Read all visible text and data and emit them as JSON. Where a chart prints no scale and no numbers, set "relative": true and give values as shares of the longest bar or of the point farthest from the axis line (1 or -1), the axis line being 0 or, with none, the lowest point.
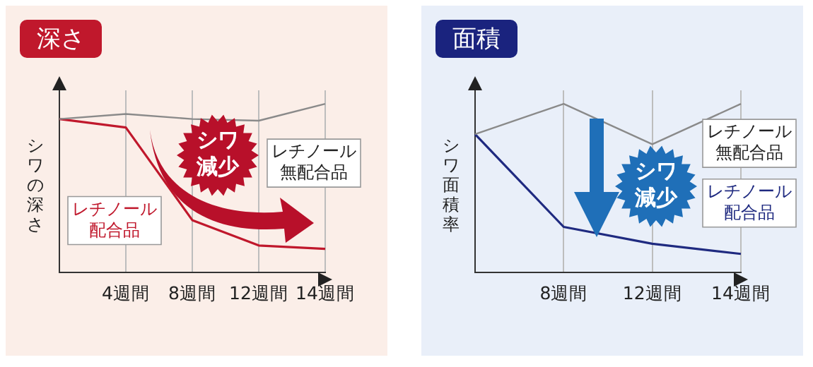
{
  "chart_data": [
    {
      "type": "line",
      "title": "深さ",
      "ylabel": "シワの深さ",
      "categories": [
        null,
        "4週間",
        "8週間",
        "12週間",
        "14週間"
      ],
      "relative": true,
      "grid": "x",
      "annotations": [
        "シワ減少"
      ],
      "series": [
        {
          "name": "レチノール無配合品",
          "color": "#8a8a8a",
          "values": [
            0.91,
            0.94,
            0.91,
            0.9,
            1
          ]
        },
        {
          "name": "レチノール配合品",
          "color": "#c0182c",
          "values": [
            0.91,
            0.86,
            0.31,
            0.16,
            0.14
          ]
        }
      ]
    },
    {
      "type": "line",
      "title": "面積",
      "ylabel": "シワ面積率",
      "categories": [
        null,
        "8週間",
        "12週間",
        "14週間"
      ],
      "relative": true,
      "grid": "x",
      "annotations": [
        "シワ減少"
      ],
      "series": [
        {
          "name": "レチノール無配合品",
          "color": "#8a8a8a",
          "values": [
            0.82,
            1,
            0.76,
            1
          ]
        },
        {
          "name": "レチノール配合品",
          "color": "#1f2a80",
          "values": [
            0.82,
            0.27,
            0.17,
            0.11
          ]
        }
      ]
    }
  ]
}
